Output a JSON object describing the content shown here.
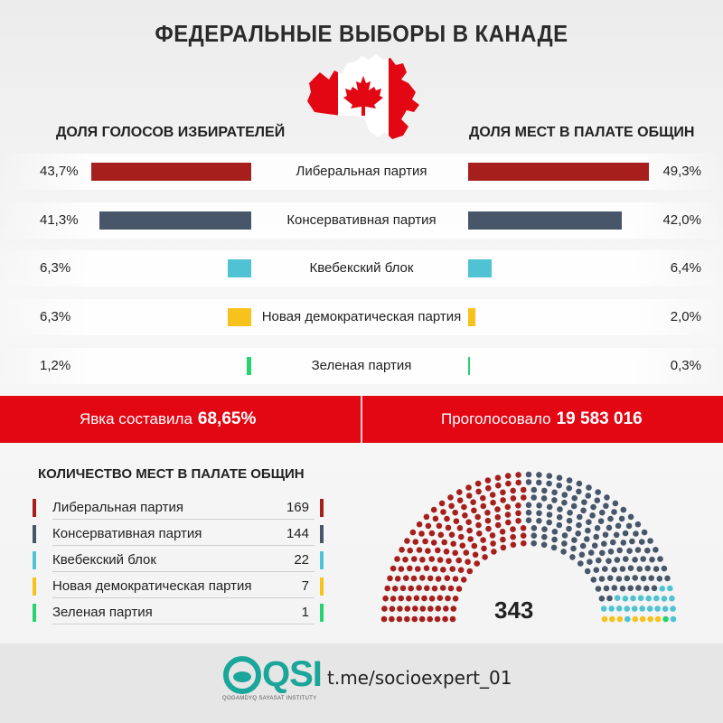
{
  "title": "ФЕДЕРАЛЬНЫЕ ВЫБОРЫ В КАНАДЕ",
  "left_header": "ДОЛЯ ГОЛОСОВ ИЗБИРАТЕЛЕЙ",
  "right_header": "ДОЛЯ МЕСТ В ПАЛАТЕ ОБЩИН",
  "turnout": {
    "label": "Явка составила",
    "value": "68,65%"
  },
  "voted": {
    "label": "Проголосовало",
    "value": "19 583 016"
  },
  "seats_title": "КОЛИЧЕСТВО МЕСТ В ПАЛАТЕ ОБЩИН",
  "total_seats": "343",
  "footer": {
    "logo": "QSI",
    "logo_sub": "QOGAMDYQ SAYASAT INSTITUTY",
    "link": "t.me/socioexpert_01"
  },
  "colors": {
    "liberal": "#a61f1c",
    "conservative": "#475669",
    "bloc": "#4fc3d3",
    "ndp": "#f7c21b",
    "green": "#27d36f",
    "banner": "#e30613"
  },
  "chart_data": [
    {
      "type": "bar",
      "title": "ДОЛЯ ГОЛОСОВ ИЗБИРАТЕЛЕЙ",
      "categories": [
        "Либеральная партия",
        "Консервативная партия",
        "Квебекский блок",
        "Новая демократическая партия",
        "Зеленая партия"
      ],
      "values": [
        43.7,
        41.3,
        6.3,
        6.3,
        1.2
      ],
      "labels": [
        "43,7%",
        "41,3%",
        "6,3%",
        "6,3%",
        "1,2%"
      ],
      "colors": [
        "#a61f1c",
        "#475669",
        "#4fc3d3",
        "#f7c21b",
        "#27d36f"
      ]
    },
    {
      "type": "bar",
      "title": "ДОЛЯ МЕСТ В ПАЛАТЕ ОБЩИН",
      "categories": [
        "Либеральная партия",
        "Консервативная партия",
        "Квебекский блок",
        "Новая демократическая партия",
        "Зеленая партия"
      ],
      "values": [
        49.3,
        42.0,
        6.4,
        2.0,
        0.3
      ],
      "labels": [
        "49,3%",
        "42,0%",
        "6,4%",
        "2,0%",
        "0,3%"
      ],
      "colors": [
        "#a61f1c",
        "#475669",
        "#4fc3d3",
        "#f7c21b",
        "#27d36f"
      ]
    },
    {
      "type": "parliament",
      "title": "КОЛИЧЕСТВО МЕСТ В ПАЛАТЕ ОБЩИН",
      "categories": [
        "Либеральная партия",
        "Консервативная партия",
        "Квебекский блок",
        "Новая демократическая партия",
        "Зеленая партия"
      ],
      "values": [
        169,
        144,
        22,
        7,
        1
      ],
      "colors": [
        "#a61f1c",
        "#475669",
        "#4fc3d3",
        "#f7c21b",
        "#27d36f"
      ],
      "total": 343
    }
  ]
}
